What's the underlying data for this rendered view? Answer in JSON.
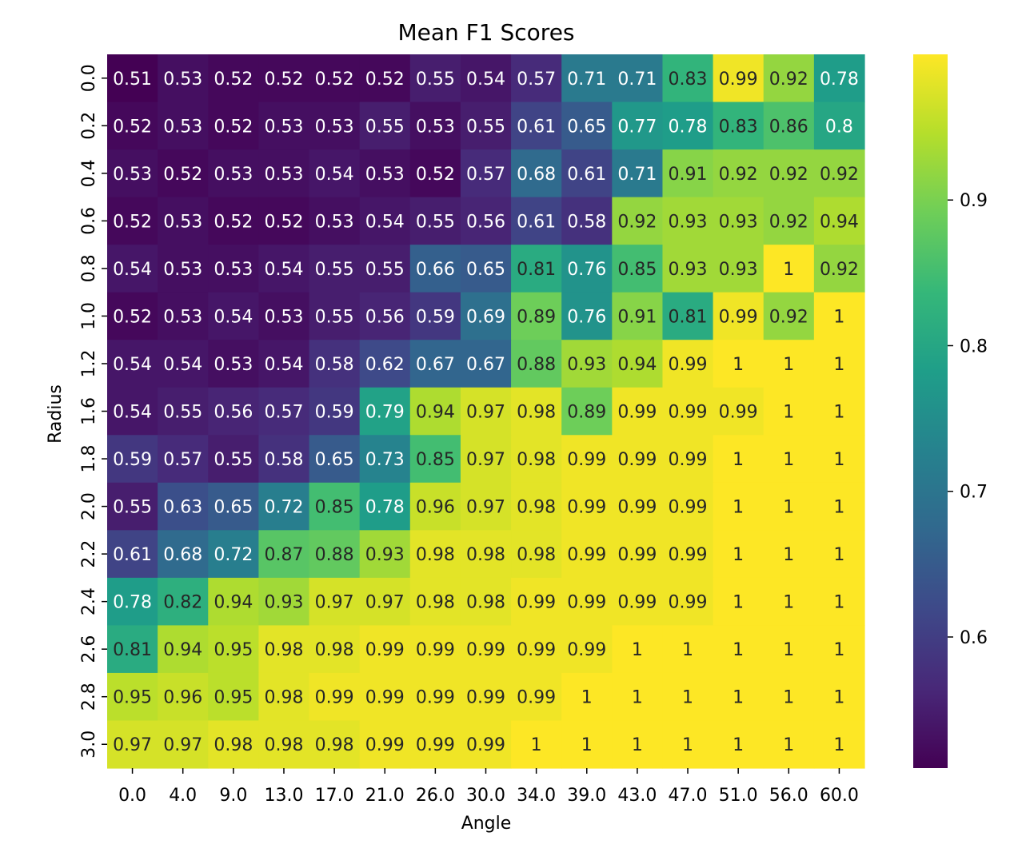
{
  "chart_data": {
    "type": "heatmap",
    "title": "Mean F1 Scores",
    "xlabel": "Angle",
    "ylabel": "Radius",
    "x_categories": [
      "0.0",
      "4.0",
      "9.0",
      "13.0",
      "17.0",
      "21.0",
      "26.0",
      "30.0",
      "34.0",
      "39.0",
      "43.0",
      "47.0",
      "51.0",
      "56.0",
      "60.0"
    ],
    "y_categories": [
      "0.0",
      "0.2",
      "0.4",
      "0.6",
      "0.8",
      "1.0",
      "1.2",
      "1.6",
      "1.8",
      "2.0",
      "2.2",
      "2.4",
      "2.6",
      "2.8",
      "3.0"
    ],
    "cell_labels": [
      [
        "0.51",
        "0.53",
        "0.52",
        "0.52",
        "0.52",
        "0.52",
        "0.55",
        "0.54",
        "0.57",
        "0.71",
        "0.71",
        "0.83",
        "0.99",
        "0.92",
        "0.78"
      ],
      [
        "0.52",
        "0.53",
        "0.52",
        "0.53",
        "0.53",
        "0.55",
        "0.53",
        "0.55",
        "0.61",
        "0.65",
        "0.77",
        "0.78",
        "0.83",
        "0.86",
        "0.8"
      ],
      [
        "0.53",
        "0.52",
        "0.53",
        "0.53",
        "0.54",
        "0.53",
        "0.52",
        "0.57",
        "0.68",
        "0.61",
        "0.71",
        "0.91",
        "0.92",
        "0.92",
        "0.92"
      ],
      [
        "0.52",
        "0.53",
        "0.52",
        "0.52",
        "0.53",
        "0.54",
        "0.55",
        "0.56",
        "0.61",
        "0.58",
        "0.92",
        "0.93",
        "0.93",
        "0.92",
        "0.94"
      ],
      [
        "0.54",
        "0.53",
        "0.53",
        "0.54",
        "0.55",
        "0.55",
        "0.66",
        "0.65",
        "0.81",
        "0.76",
        "0.85",
        "0.93",
        "0.93",
        "1",
        "0.92"
      ],
      [
        "0.52",
        "0.53",
        "0.54",
        "0.53",
        "0.55",
        "0.56",
        "0.59",
        "0.69",
        "0.89",
        "0.76",
        "0.91",
        "0.81",
        "0.99",
        "0.92",
        "1"
      ],
      [
        "0.54",
        "0.54",
        "0.53",
        "0.54",
        "0.58",
        "0.62",
        "0.67",
        "0.67",
        "0.88",
        "0.93",
        "0.94",
        "0.99",
        "1",
        "1",
        "1"
      ],
      [
        "0.54",
        "0.55",
        "0.56",
        "0.57",
        "0.59",
        "0.79",
        "0.94",
        "0.97",
        "0.98",
        "0.89",
        "0.99",
        "0.99",
        "0.99",
        "1",
        "1"
      ],
      [
        "0.59",
        "0.57",
        "0.55",
        "0.58",
        "0.65",
        "0.73",
        "0.85",
        "0.97",
        "0.98",
        "0.99",
        "0.99",
        "0.99",
        "1",
        "1",
        "1"
      ],
      [
        "0.55",
        "0.63",
        "0.65",
        "0.72",
        "0.85",
        "0.78",
        "0.96",
        "0.97",
        "0.98",
        "0.99",
        "0.99",
        "0.99",
        "1",
        "1",
        "1"
      ],
      [
        "0.61",
        "0.68",
        "0.72",
        "0.87",
        "0.88",
        "0.93",
        "0.98",
        "0.98",
        "0.98",
        "0.99",
        "0.99",
        "0.99",
        "1",
        "1",
        "1"
      ],
      [
        "0.78",
        "0.82",
        "0.94",
        "0.93",
        "0.97",
        "0.97",
        "0.98",
        "0.98",
        "0.99",
        "0.99",
        "0.99",
        "0.99",
        "1",
        "1",
        "1"
      ],
      [
        "0.81",
        "0.94",
        "0.95",
        "0.98",
        "0.98",
        "0.99",
        "0.99",
        "0.99",
        "0.99",
        "0.99",
        "1",
        "1",
        "1",
        "1",
        "1"
      ],
      [
        "0.95",
        "0.96",
        "0.95",
        "0.98",
        "0.99",
        "0.99",
        "0.99",
        "0.99",
        "0.99",
        "1",
        "1",
        "1",
        "1",
        "1",
        "1"
      ],
      [
        "0.97",
        "0.97",
        "0.98",
        "0.98",
        "0.98",
        "0.99",
        "0.99",
        "0.99",
        "1",
        "1",
        "1",
        "1",
        "1",
        "1",
        "1"
      ]
    ],
    "colormap": "viridis",
    "colorbar_range": [
      0.51,
      1.0
    ],
    "colorbar_ticks": [
      "0.6",
      "0.7",
      "0.8",
      "0.9"
    ],
    "colorbar_tick_values": [
      0.6,
      0.7,
      0.8,
      0.9
    ],
    "viridis_stops": [
      "#440154",
      "#482878",
      "#3e4989",
      "#31688e",
      "#26828e",
      "#1f9e89",
      "#35b779",
      "#6ece58",
      "#b5de2b",
      "#fde725"
    ],
    "light_text_color": "#ffffff",
    "dark_text_color": "#262626"
  }
}
